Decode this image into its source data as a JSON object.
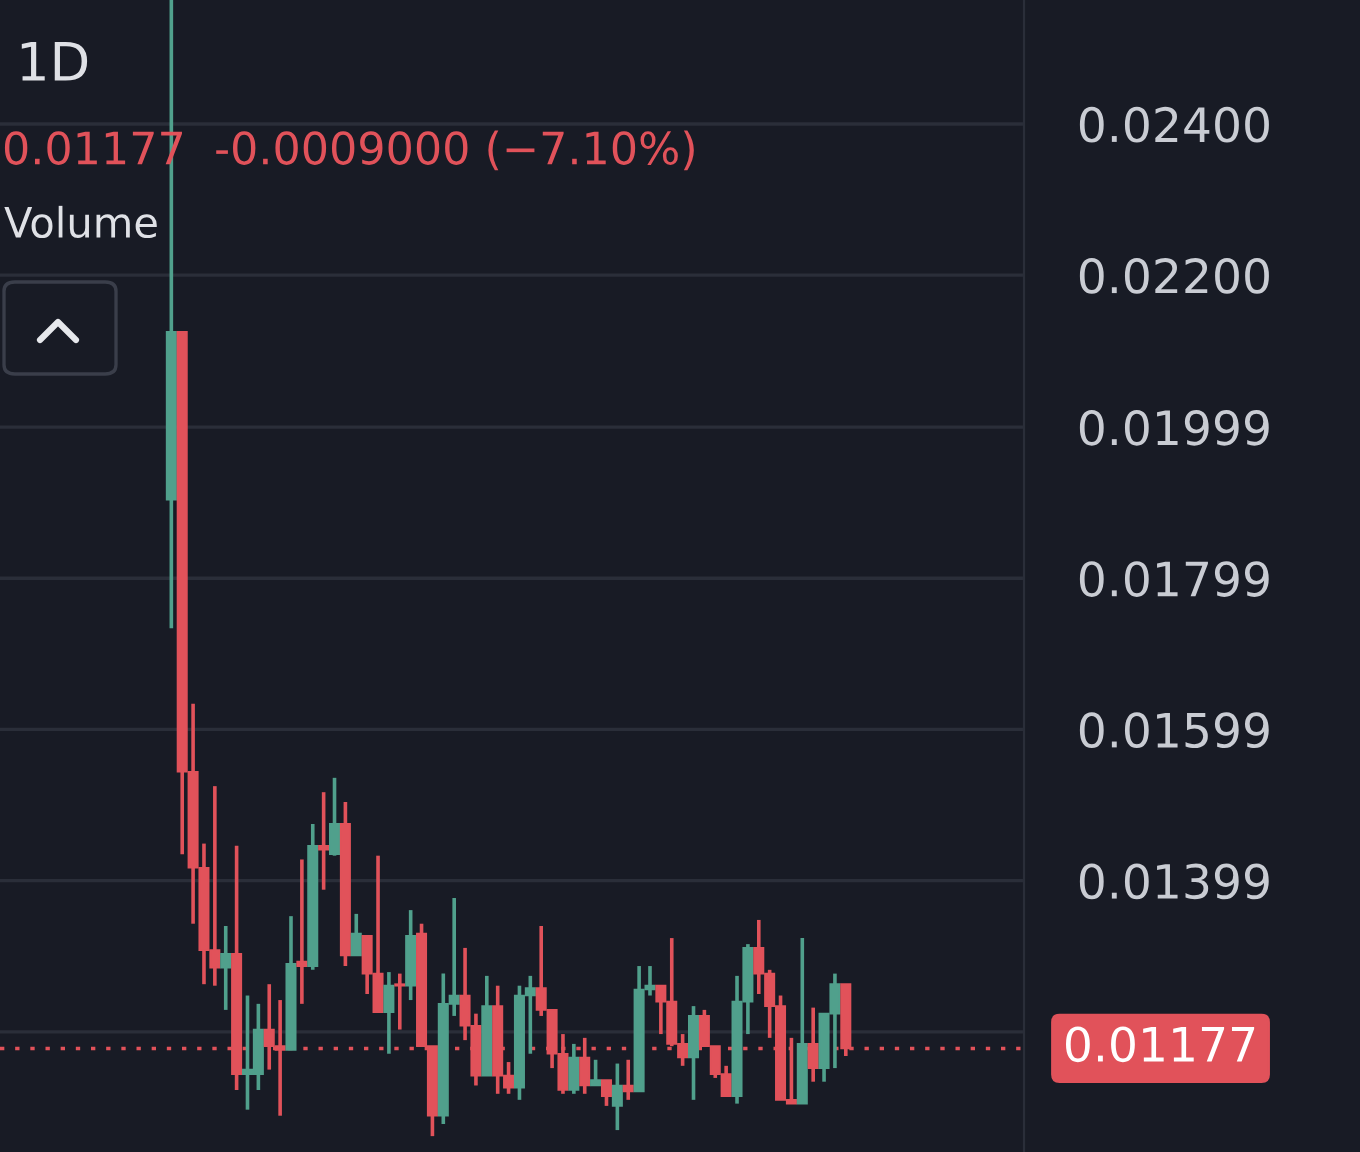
{
  "chart_data": {
    "type": "candlestick",
    "title": "1D",
    "subtitle": "0.01177  -0.0009000 (−7.10%)",
    "annotations": [
      "Volume"
    ],
    "categories": [
      null,
      null,
      null,
      null,
      null,
      null,
      null,
      null,
      null,
      null,
      null,
      null,
      null,
      null,
      null,
      null,
      null,
      null,
      null,
      null,
      null,
      null,
      null,
      null,
      null,
      null,
      null,
      null,
      null,
      null,
      null,
      null,
      null,
      null,
      null,
      null,
      null,
      null,
      null,
      null,
      null,
      null,
      null,
      null,
      null,
      null,
      null,
      null,
      null,
      null,
      null,
      null,
      null,
      null,
      null,
      null,
      null,
      null,
      null,
      null,
      null,
      null,
      null
    ],
    "ohlc": [
      [
        0.01903,
        0.02564,
        0.01733,
        0.02125
      ],
      [
        0.02125,
        0.02125,
        0.01434,
        0.01543
      ],
      [
        0.01543,
        0.01633,
        0.01342,
        0.01416
      ],
      [
        0.01416,
        0.01448,
        0.01262,
        0.01307
      ],
      [
        0.01307,
        0.01524,
        0.0126,
        0.01284
      ],
      [
        0.01284,
        0.01339,
        0.01228,
        0.01302
      ],
      [
        0.01302,
        0.01445,
        0.01122,
        0.01143
      ],
      [
        0.01143,
        0.01247,
        0.01096,
        0.01149
      ],
      [
        0.01143,
        0.01236,
        0.01122,
        0.01202
      ],
      [
        0.01202,
        0.01262,
        0.01149,
        0.0118
      ],
      [
        0.0118,
        0.01241,
        0.01088,
        0.01175
      ],
      [
        0.01175,
        0.01352,
        0.01175,
        0.01289
      ],
      [
        0.01292,
        0.01427,
        0.01236,
        0.01286
      ],
      [
        0.01286,
        0.01474,
        0.01281,
        0.01445
      ],
      [
        0.01445,
        0.01516,
        0.01387,
        0.0144
      ],
      [
        0.01434,
        0.01535,
        0.01432,
        0.01474
      ],
      [
        0.01474,
        0.01503,
        0.01286,
        0.013
      ],
      [
        0.013,
        0.01355,
        0.013,
        0.01329
      ],
      [
        0.01326,
        0.01326,
        0.01249,
        0.01276
      ],
      [
        0.01276,
        0.01432,
        0.01225,
        0.01225
      ],
      [
        0.01225,
        0.01278,
        0.0117,
        0.0126
      ],
      [
        0.01262,
        0.01276,
        0.01202,
        0.0126
      ],
      [
        0.0126,
        0.0136,
        0.01241,
        0.01326
      ],
      [
        0.01329,
        0.01342,
        0.0118,
        0.0118
      ],
      [
        0.0118,
        0.0118,
        0.01061,
        0.01088
      ],
      [
        0.01088,
        0.01276,
        0.01077,
        0.01236
      ],
      [
        0.01236,
        0.01376,
        0.0122,
        0.01247
      ],
      [
        0.01247,
        0.0131,
        0.01188,
        0.01207
      ],
      [
        0.01207,
        0.01223,
        0.01128,
        0.01141
      ],
      [
        0.01141,
        0.01273,
        0.01141,
        0.01233
      ],
      [
        0.01233,
        0.0126,
        0.01117,
        0.01141
      ],
      [
        0.01141,
        0.01159,
        0.01117,
        0.01125
      ],
      [
        0.01125,
        0.0126,
        0.01109,
        0.01247
      ],
      [
        0.01247,
        0.01273,
        0.0117,
        0.01257
      ],
      [
        0.01257,
        0.01339,
        0.0122,
        0.01228
      ],
      [
        0.01228,
        0.01228,
        0.01151,
        0.0117
      ],
      [
        0.0117,
        0.01196,
        0.01117,
        0.01122
      ],
      [
        0.01122,
        0.01183,
        0.01117,
        0.01165
      ],
      [
        0.01165,
        0.01191,
        0.01117,
        0.01128
      ],
      [
        0.01128,
        0.01162,
        0.01128,
        0.01135
      ],
      [
        0.01135,
        0.01135,
        0.01101,
        0.01114
      ],
      [
        0.01101,
        0.01157,
        0.01069,
        0.01128
      ],
      [
        0.01128,
        0.01162,
        0.01109,
        0.0112
      ],
      [
        0.0112,
        0.01286,
        0.0112,
        0.01255
      ],
      [
        0.01255,
        0.01286,
        0.01247,
        0.0126
      ],
      [
        0.0126,
        0.0126,
        0.01196,
        0.01239
      ],
      [
        0.01239,
        0.01323,
        0.0118,
        0.01183
      ],
      [
        0.01183,
        0.01196,
        0.01154,
        0.01165
      ],
      [
        0.01165,
        0.01233,
        0.01109,
        0.0122
      ],
      [
        0.0122,
        0.01228,
        0.0118,
        0.0118
      ],
      [
        0.0118,
        0.0118,
        0.01138,
        0.01143
      ],
      [
        0.01143,
        0.01154,
        0.01114,
        0.01114
      ],
      [
        0.01114,
        0.01273,
        0.01104,
        0.01239
      ],
      [
        0.01239,
        0.01315,
        0.01196,
        0.0131
      ],
      [
        0.0131,
        0.01347,
        0.01249,
        0.01276
      ],
      [
        0.01276,
        0.01281,
        0.01191,
        0.01233
      ],
      [
        0.01233,
        0.01247,
        0.01109,
        0.01109
      ],
      [
        0.01109,
        0.01191,
        0.01104,
        0.01104
      ],
      [
        0.01104,
        0.01323,
        0.01104,
        0.01183
      ],
      [
        0.01183,
        0.01231,
        0.01133,
        0.01151
      ],
      [
        0.01151,
        0.01223,
        0.01133,
        0.01223
      ],
      [
        0.01223,
        0.01276,
        0.01151,
        0.01262
      ],
      [
        0.01262,
        0.01262,
        0.01167,
        0.01177
      ]
    ],
    "colors": [
      "#50a08c",
      "#e1525a",
      "#e1525a",
      "#e1525a",
      "#e1525a",
      "#50a08c",
      "#e1525a",
      "#50a08c",
      "#50a08c",
      "#e1525a",
      "#e1525a",
      "#50a08c",
      "#e1525a",
      "#50a08c",
      "#e1525a",
      "#50a08c",
      "#e1525a",
      "#50a08c",
      "#e1525a",
      "#e1525a",
      "#50a08c",
      "#e1525a",
      "#50a08c",
      "#e1525a",
      "#e1525a",
      "#50a08c",
      "#50a08c",
      "#e1525a",
      "#e1525a",
      "#50a08c",
      "#e1525a",
      "#e1525a",
      "#50a08c",
      "#50a08c",
      "#e1525a",
      "#e1525a",
      "#e1525a",
      "#50a08c",
      "#e1525a",
      "#50a08c",
      "#e1525a",
      "#50a08c",
      "#e1525a",
      "#50a08c",
      "#50a08c",
      "#e1525a",
      "#e1525a",
      "#e1525a",
      "#50a08c",
      "#e1525a",
      "#e1525a",
      "#e1525a",
      "#50a08c",
      "#50a08c",
      "#e1525a",
      "#e1525a",
      "#e1525a",
      "#e1525a",
      "#50a08c",
      "#e1525a",
      "#50a08c",
      "#50a08c",
      "#e1525a"
    ],
    "ylim": [
      0.0104,
      0.02564
    ],
    "yticks": [
      {
        "value": 0.01199,
        "label": null
      },
      {
        "value": 0.01399,
        "label": "0.01399"
      },
      {
        "value": 0.01599,
        "label": "0.01599"
      },
      {
        "value": 0.01799,
        "label": "0.01799"
      },
      {
        "value": 0.01999,
        "label": "0.01999"
      },
      {
        "value": 0.022,
        "label": "0.02200"
      },
      {
        "value": 0.024,
        "label": "0.02400"
      }
    ],
    "ref_lines": [
      {
        "axis": "y",
        "value": 0.01177,
        "label": "0.01177",
        "color": "#e1525a",
        "line_style": "dotted"
      }
    ],
    "grid": "y",
    "tick_labels": "y"
  }
}
